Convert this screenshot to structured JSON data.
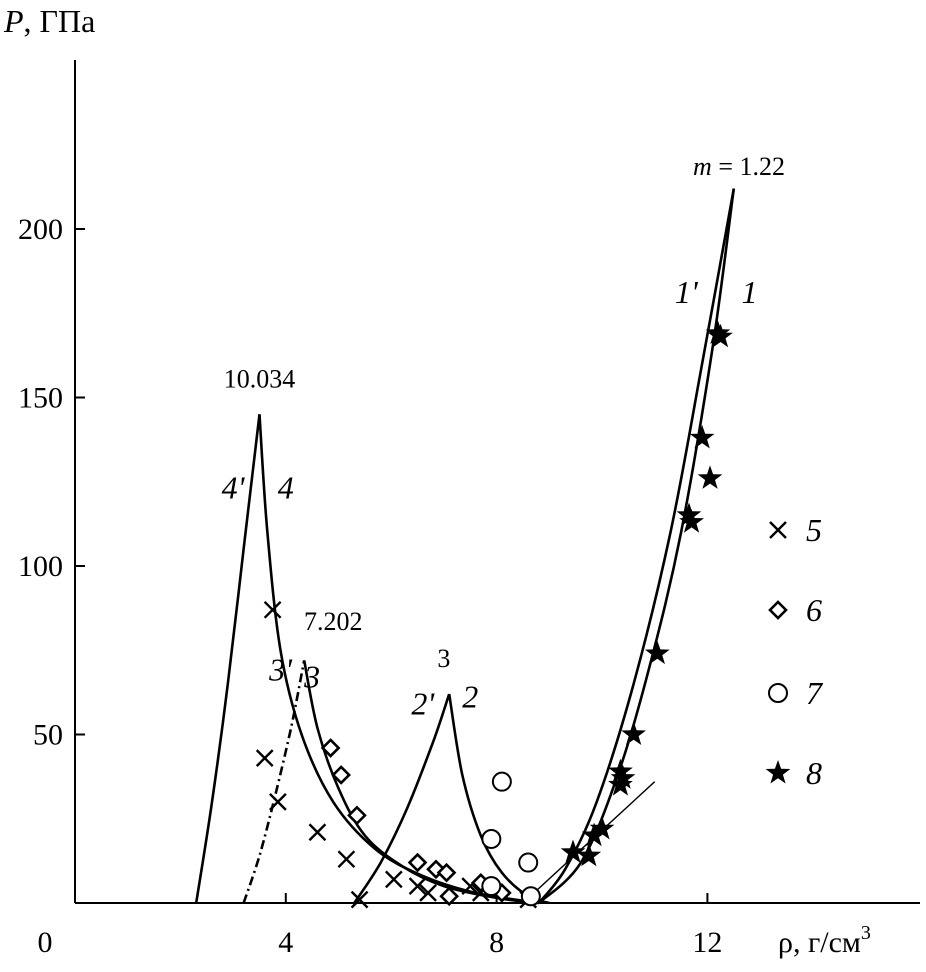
{
  "chart_data": {
    "type": "line",
    "ylabel_italic": "P",
    "ylabel_rest": ", ГПа",
    "xlabel_base": "ρ, г/см",
    "xlabel_sup": "3",
    "xlim": [
      0,
      15.6
    ],
    "ylim": [
      0,
      250
    ],
    "xticks": [
      0,
      4,
      8,
      12
    ],
    "yticks": [
      50,
      100,
      150,
      200
    ],
    "x_tick_labels": [
      "0",
      "4",
      "8",
      "12"
    ],
    "y_tick_labels": [
      "50",
      "100",
      "150",
      "200"
    ],
    "curves": [
      {
        "id": "1",
        "label": "1",
        "style": "solid",
        "points": [
          [
            8.8,
            0
          ],
          [
            9.6,
            12
          ],
          [
            10.3,
            38
          ],
          [
            10.9,
            70
          ],
          [
            11.5,
            110
          ],
          [
            12.1,
            165
          ],
          [
            12.5,
            212
          ]
        ]
      },
      {
        "id": "1p",
        "label": "1'",
        "style": "solid",
        "points": [
          [
            8.8,
            0
          ],
          [
            9.3,
            10
          ],
          [
            9.9,
            30
          ],
          [
            10.6,
            65
          ],
          [
            11.3,
            110
          ],
          [
            11.9,
            160
          ],
          [
            12.5,
            212
          ]
        ]
      },
      {
        "id": "2",
        "label": "2",
        "style": "solid",
        "points": [
          [
            7.1,
            62
          ],
          [
            7.35,
            38
          ],
          [
            7.7,
            20
          ],
          [
            8.1,
            9
          ],
          [
            8.6,
            2
          ],
          [
            9.0,
            0
          ]
        ]
      },
      {
        "id": "2p",
        "label": "2'",
        "style": "solid",
        "points": [
          [
            5.3,
            0
          ],
          [
            5.8,
            12
          ],
          [
            6.3,
            28
          ],
          [
            6.8,
            48
          ],
          [
            7.1,
            62
          ]
        ]
      },
      {
        "id": "3",
        "label": "3",
        "style": "solid",
        "points": [
          [
            4.35,
            72
          ],
          [
            4.6,
            52
          ],
          [
            5.0,
            34
          ],
          [
            5.5,
            20
          ],
          [
            6.2,
            11
          ],
          [
            7.0,
            5
          ],
          [
            8.0,
            1.5
          ],
          [
            8.8,
            0
          ]
        ]
      },
      {
        "id": "3p",
        "label": "3'",
        "style": "dashdot",
        "points": [
          [
            3.2,
            0
          ],
          [
            3.5,
            14
          ],
          [
            3.8,
            32
          ],
          [
            4.1,
            52
          ],
          [
            4.35,
            72
          ]
        ]
      },
      {
        "id": "4",
        "label": "4",
        "style": "solid",
        "points": [
          [
            3.5,
            145
          ],
          [
            3.65,
            110
          ],
          [
            3.9,
            75
          ],
          [
            4.3,
            50
          ],
          [
            4.9,
            30
          ],
          [
            5.7,
            16
          ],
          [
            6.6,
            8
          ],
          [
            7.6,
            3
          ],
          [
            8.8,
            0
          ]
        ]
      },
      {
        "id": "4p",
        "label": "4'",
        "style": "solid",
        "points": [
          [
            2.3,
            0
          ],
          [
            2.6,
            30
          ],
          [
            2.9,
            65
          ],
          [
            3.2,
            105
          ],
          [
            3.5,
            145
          ]
        ]
      },
      {
        "id": "tangent",
        "label": "",
        "style": "thin",
        "points": [
          [
            8.5,
            0
          ],
          [
            11.0,
            36
          ]
        ]
      }
    ],
    "peak_labels": [
      {
        "text": "m = 1.22",
        "x": 12.6,
        "y": 216
      },
      {
        "text": "10.034",
        "x": 3.5,
        "y": 153
      },
      {
        "text": "7.202",
        "x": 4.9,
        "y": 81
      },
      {
        "text": "3",
        "x": 7.0,
        "y": 70
      }
    ],
    "curve_labels": [
      {
        "text": "1",
        "x": 12.8,
        "y": 178
      },
      {
        "text": "1'",
        "x": 11.6,
        "y": 178
      },
      {
        "text": "2",
        "x": 7.5,
        "y": 58
      },
      {
        "text": "2'",
        "x": 6.6,
        "y": 56
      },
      {
        "text": "3",
        "x": 4.5,
        "y": 64
      },
      {
        "text": "3'",
        "x": 3.9,
        "y": 66
      },
      {
        "text": "4",
        "x": 4.0,
        "y": 120
      },
      {
        "text": "4'",
        "x": 3.0,
        "y": 120
      }
    ],
    "series": [
      {
        "name": "5",
        "marker": "cross",
        "points": [
          [
            3.75,
            87
          ],
          [
            3.6,
            43
          ],
          [
            3.85,
            30
          ],
          [
            4.6,
            21
          ],
          [
            5.15,
            13
          ],
          [
            5.4,
            1
          ],
          [
            6.05,
            7
          ],
          [
            6.5,
            5
          ],
          [
            6.7,
            3
          ],
          [
            7.5,
            5
          ],
          [
            7.7,
            3
          ],
          [
            8.6,
            1
          ]
        ]
      },
      {
        "name": "6",
        "marker": "diamond",
        "points": [
          [
            4.85,
            46
          ],
          [
            5.05,
            38
          ],
          [
            5.35,
            26
          ],
          [
            6.5,
            12
          ],
          [
            6.85,
            10
          ],
          [
            7.05,
            9
          ],
          [
            7.1,
            2
          ],
          [
            7.7,
            6
          ],
          [
            8.1,
            3
          ],
          [
            8.65,
            2
          ]
        ]
      },
      {
        "name": "7",
        "marker": "circle",
        "points": [
          [
            8.1,
            36
          ],
          [
            7.9,
            19
          ],
          [
            8.6,
            12
          ],
          [
            7.9,
            5
          ],
          [
            8.65,
            2
          ]
        ]
      },
      {
        "name": "8",
        "marker": "star",
        "points": [
          [
            12.2,
            169
          ],
          [
            12.25,
            168
          ],
          [
            11.9,
            138
          ],
          [
            12.05,
            126
          ],
          [
            11.65,
            115
          ],
          [
            11.7,
            113
          ],
          [
            11.05,
            74
          ],
          [
            10.6,
            50
          ],
          [
            10.35,
            39
          ],
          [
            10.4,
            37
          ],
          [
            10.35,
            35
          ],
          [
            10.0,
            22
          ],
          [
            9.85,
            20
          ],
          [
            9.75,
            14
          ],
          [
            9.45,
            15
          ]
        ]
      }
    ],
    "legend": [
      {
        "name": "5",
        "marker": "cross"
      },
      {
        "name": "6",
        "marker": "diamond"
      },
      {
        "name": "7",
        "marker": "circle"
      },
      {
        "name": "8",
        "marker": "star"
      }
    ],
    "legend_position": "right"
  }
}
